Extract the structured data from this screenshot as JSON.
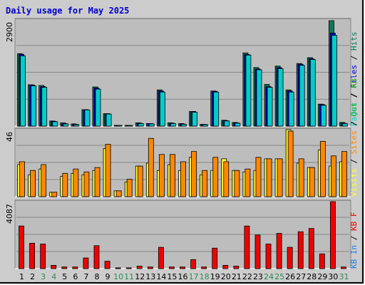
{
  "chart_data": {
    "type": "bar",
    "title": "Daily usage for May 2025",
    "categories": [
      "1",
      "2",
      "3",
      "4",
      "5",
      "6",
      "7",
      "8",
      "9",
      "10",
      "11",
      "12",
      "13",
      "14",
      "15",
      "16",
      "17",
      "18",
      "19",
      "20",
      "21",
      "22",
      "23",
      "24",
      "25",
      "26",
      "27",
      "28",
      "29",
      "30",
      "31"
    ],
    "weekend_days": [
      3,
      4,
      10,
      11,
      17,
      18,
      24,
      25,
      31
    ],
    "colors": {
      "title": "#0000cc",
      "pages": "#00cccc",
      "files": "#0000cc",
      "hits": "#0a7a5a",
      "visits": "#ffff33",
      "sites": "#ff8800",
      "kb_f": "#ee0000",
      "kb_in": "#2277ee",
      "kb_out": "#22aa22",
      "weekday": "#000000",
      "weekend": "#2e8b57"
    },
    "panels": [
      {
        "scale_label": "2900",
        "ylim": [
          0,
          2900
        ],
        "legend": [
          "Pages",
          "/",
          "Files",
          "/",
          "Hits"
        ],
        "series": [
          {
            "name": "Hits",
            "values": [
              1980,
              1130,
              1110,
              140,
              90,
              60,
              450,
              1070,
              340,
              20,
              20,
              90,
              70,
              990,
              90,
              70,
              400,
              50,
              960,
              160,
              100,
              2000,
              1600,
              1140,
              1640,
              990,
              1710,
              1870,
              600,
              2880,
              100
            ]
          },
          {
            "name": "Files",
            "values": [
              1960,
              1120,
              1080,
              130,
              70,
              50,
              450,
              1040,
              340,
              20,
              20,
              80,
              70,
              960,
              80,
              60,
              400,
              50,
              950,
              150,
              90,
              1960,
              1560,
              1080,
              1600,
              960,
              1690,
              1840,
              590,
              2540,
              80
            ]
          },
          {
            "name": "Pages",
            "values": [
              1920,
              1100,
              1060,
              120,
              60,
              40,
              440,
              1010,
              330,
              20,
              20,
              70,
              60,
              930,
              70,
              50,
              380,
              40,
              930,
              140,
              80,
              1940,
              1540,
              1060,
              1570,
              930,
              1660,
              1820,
              570,
              2480,
              70
            ]
          }
        ]
      },
      {
        "scale_label": "46",
        "ylim": [
          0,
          46
        ],
        "legend": [
          "Visits",
          "/",
          "Sites",
          "/",
          "Out",
          "/",
          "KB"
        ],
        "series": [
          {
            "name": "Visits",
            "values": [
              22,
              15,
              19,
              3,
              14,
              16,
              15,
              18,
              33,
              4,
              10,
              21,
              23,
              18,
              22,
              18,
              27,
              15,
              18,
              26,
              18,
              17,
              18,
              26,
              26,
              46,
              23,
              20,
              32,
              21,
              24
            ]
          },
          {
            "name": "Sites",
            "values": [
              24,
              18,
              22,
              3,
              16,
              19,
              17,
              20,
              36,
              4,
              12,
              21,
              40,
              29,
              29,
              24,
              31,
              18,
              27,
              24,
              18,
              19,
              27,
              26,
              26,
              45,
              26,
              20,
              38,
              28,
              31
            ]
          }
        ]
      },
      {
        "scale_label": "4087",
        "ylim": [
          0,
          4087
        ],
        "legend": [
          "KB",
          "In",
          "/",
          "KB",
          "F"
        ],
        "series": [
          {
            "name": "KB F",
            "values": [
              2600,
              1550,
              1500,
              200,
              100,
              100,
              650,
              1400,
              450,
              50,
              50,
              150,
              100,
              1300,
              100,
              100,
              550,
              100,
              1250,
              200,
              150,
              2600,
              2050,
              1500,
              2150,
              1300,
              2250,
              2450,
              900,
              4087,
              100
            ]
          }
        ]
      }
    ]
  }
}
